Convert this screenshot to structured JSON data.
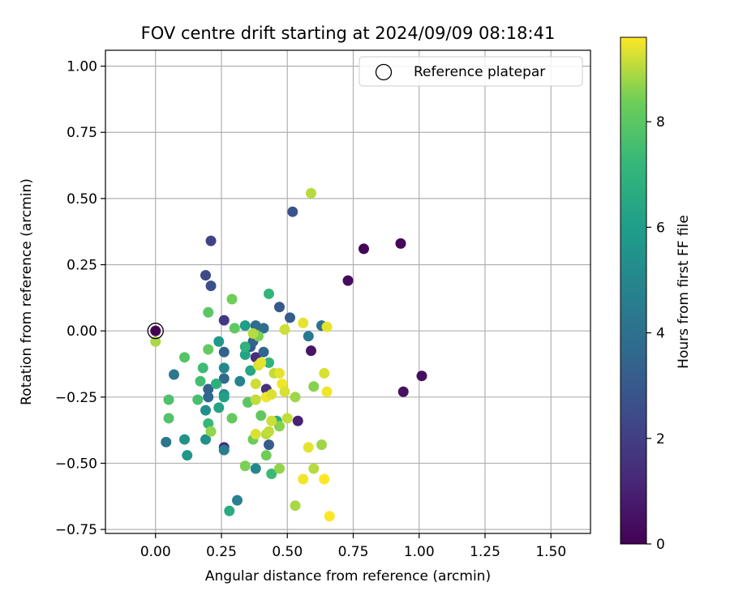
{
  "chart_data": {
    "type": "scatter",
    "title": "FOV centre drift starting at 2024/09/09 08:18:41",
    "xlabel": "Angular distance from reference (arcmin)",
    "ylabel": "Rotation from reference (arcmin)",
    "xlim": [
      -0.19,
      1.65
    ],
    "ylim": [
      -0.765,
      1.06
    ],
    "xticks": [
      0.0,
      0.25,
      0.5,
      0.75,
      1.0,
      1.25,
      1.5
    ],
    "xtick_labels": [
      "0.00",
      "0.25",
      "0.50",
      "0.75",
      "1.00",
      "1.25",
      "1.50"
    ],
    "yticks": [
      -0.75,
      -0.5,
      -0.25,
      0.0,
      0.25,
      0.5,
      0.75,
      1.0
    ],
    "ytick_labels": [
      "−0.75",
      "−0.50",
      "−0.25",
      "0.00",
      "0.25",
      "0.50",
      "0.75",
      "1.00"
    ],
    "grid": true,
    "legend_position": "top-right",
    "legend": [
      {
        "label": "Reference platepar",
        "marker": "open-circle"
      }
    ],
    "reference_point": {
      "x": 0.0,
      "y": 0.0
    },
    "colorbar": {
      "label": "Hours from first FF file",
      "colormap": "viridis",
      "range": [
        0,
        9.6
      ],
      "ticks": [
        0,
        2,
        4,
        6,
        8
      ],
      "tick_labels": [
        "0",
        "2",
        "4",
        "6",
        "8"
      ]
    },
    "points": [
      {
        "x": 0.0,
        "y": 0.0,
        "c": 0.0
      },
      {
        "x": 0.79,
        "y": 0.31,
        "c": 0.1
      },
      {
        "x": 0.93,
        "y": 0.33,
        "c": 0.2
      },
      {
        "x": 0.73,
        "y": 0.19,
        "c": 0.3
      },
      {
        "x": 1.01,
        "y": -0.17,
        "c": 0.4
      },
      {
        "x": 0.94,
        "y": -0.23,
        "c": 0.5
      },
      {
        "x": 0.59,
        "y": -0.075,
        "c": 0.6
      },
      {
        "x": 0.54,
        "y": -0.34,
        "c": 1.0
      },
      {
        "x": 0.26,
        "y": -0.44,
        "c": 1.2
      },
      {
        "x": 0.38,
        "y": -0.1,
        "c": 1.4
      },
      {
        "x": 0.42,
        "y": -0.22,
        "c": 1.6
      },
      {
        "x": 0.26,
        "y": 0.04,
        "c": 1.8
      },
      {
        "x": 0.21,
        "y": 0.34,
        "c": 2.2
      },
      {
        "x": 0.19,
        "y": 0.21,
        "c": 2.4
      },
      {
        "x": 0.21,
        "y": 0.17,
        "c": 2.6
      },
      {
        "x": 0.52,
        "y": 0.45,
        "c": 2.8
      },
      {
        "x": 0.47,
        "y": 0.09,
        "c": 3.0
      },
      {
        "x": 0.51,
        "y": 0.05,
        "c": 3.1
      },
      {
        "x": 0.36,
        "y": -0.06,
        "c": 3.0
      },
      {
        "x": 0.43,
        "y": -0.43,
        "c": 3.2
      },
      {
        "x": 0.2,
        "y": -0.22,
        "c": 3.3
      },
      {
        "x": 0.26,
        "y": -0.08,
        "c": 3.4
      },
      {
        "x": 0.37,
        "y": -0.04,
        "c": 3.3
      },
      {
        "x": 0.41,
        "y": -0.08,
        "c": 3.5
      },
      {
        "x": 0.2,
        "y": -0.25,
        "c": 3.6
      },
      {
        "x": 0.26,
        "y": -0.18,
        "c": 3.7
      },
      {
        "x": 0.38,
        "y": 0.02,
        "c": 3.8
      },
      {
        "x": 0.41,
        "y": 0.01,
        "c": 3.9
      },
      {
        "x": 0.63,
        "y": 0.02,
        "c": 4.0
      },
      {
        "x": 0.04,
        "y": -0.42,
        "c": 4.2
      },
      {
        "x": 0.07,
        "y": -0.165,
        "c": 4.3
      },
      {
        "x": 0.58,
        "y": -0.02,
        "c": 4.4
      },
      {
        "x": 0.26,
        "y": -0.45,
        "c": 4.6
      },
      {
        "x": 0.31,
        "y": -0.64,
        "c": 4.8
      },
      {
        "x": 0.32,
        "y": -0.19,
        "c": 4.9
      },
      {
        "x": 0.38,
        "y": -0.52,
        "c": 5.0
      },
      {
        "x": 0.26,
        "y": -0.14,
        "c": 5.1
      },
      {
        "x": 0.26,
        "y": -0.24,
        "c": 5.2
      },
      {
        "x": 0.19,
        "y": -0.3,
        "c": 5.3
      },
      {
        "x": 0.19,
        "y": -0.41,
        "c": 5.4
      },
      {
        "x": 0.11,
        "y": -0.41,
        "c": 5.5
      },
      {
        "x": 0.12,
        "y": -0.47,
        "c": 5.7
      },
      {
        "x": 0.24,
        "y": -0.04,
        "c": 5.8
      },
      {
        "x": 0.34,
        "y": 0.02,
        "c": 6.0
      },
      {
        "x": 0.26,
        "y": -0.25,
        "c": 6.1
      },
      {
        "x": 0.24,
        "y": -0.29,
        "c": 6.2
      },
      {
        "x": 0.34,
        "y": -0.09,
        "c": 6.3
      },
      {
        "x": 0.36,
        "y": -0.15,
        "c": 6.4
      },
      {
        "x": 0.28,
        "y": -0.68,
        "c": 6.6
      },
      {
        "x": 0.46,
        "y": -0.34,
        "c": 6.7
      },
      {
        "x": 0.23,
        "y": -0.2,
        "c": 6.8
      },
      {
        "x": 0.34,
        "y": -0.06,
        "c": 6.9
      },
      {
        "x": 0.43,
        "y": -0.12,
        "c": 7.0
      },
      {
        "x": 0.43,
        "y": 0.14,
        "c": 7.1
      },
      {
        "x": 0.2,
        "y": -0.35,
        "c": 7.2
      },
      {
        "x": 0.44,
        "y": -0.54,
        "c": 7.3
      },
      {
        "x": 0.18,
        "y": -0.14,
        "c": 7.4
      },
      {
        "x": 0.17,
        "y": -0.19,
        "c": 7.5
      },
      {
        "x": 0.16,
        "y": -0.26,
        "c": 7.6
      },
      {
        "x": 0.05,
        "y": -0.26,
        "c": 7.7
      },
      {
        "x": 0.05,
        "y": -0.33,
        "c": 7.8
      },
      {
        "x": 0.11,
        "y": -0.1,
        "c": 7.9
      },
      {
        "x": 0.2,
        "y": 0.07,
        "c": 8.0
      },
      {
        "x": 0.3,
        "y": 0.01,
        "c": 8.1
      },
      {
        "x": 0.29,
        "y": -0.33,
        "c": 8.2
      },
      {
        "x": 0.35,
        "y": -0.27,
        "c": 8.0
      },
      {
        "x": 0.4,
        "y": -0.32,
        "c": 8.1
      },
      {
        "x": 0.37,
        "y": -0.41,
        "c": 8.3
      },
      {
        "x": 0.42,
        "y": -0.47,
        "c": 8.4
      },
      {
        "x": 0.34,
        "y": -0.51,
        "c": 8.5
      },
      {
        "x": 0.47,
        "y": -0.36,
        "c": 8.6
      },
      {
        "x": 0.47,
        "y": -0.52,
        "c": 8.7
      },
      {
        "x": 0.53,
        "y": -0.25,
        "c": 8.8
      },
      {
        "x": 0.53,
        "y": -0.66,
        "c": 8.9
      },
      {
        "x": 0.6,
        "y": -0.52,
        "c": 9.0
      },
      {
        "x": 0.6,
        "y": -0.21,
        "c": 8.6
      },
      {
        "x": 0.63,
        "y": -0.43,
        "c": 8.8
      },
      {
        "x": 0.29,
        "y": 0.12,
        "c": 8.4
      },
      {
        "x": 0.2,
        "y": -0.07,
        "c": 8.2
      },
      {
        "x": 0.21,
        "y": -0.38,
        "c": 8.7
      },
      {
        "x": 0.0,
        "y": -0.04,
        "c": 8.9
      },
      {
        "x": 0.39,
        "y": -0.02,
        "c": 8.5
      },
      {
        "x": 0.37,
        "y": -0.01,
        "c": 9.0
      },
      {
        "x": 0.38,
        "y": -0.26,
        "c": 9.1
      },
      {
        "x": 0.38,
        "y": -0.2,
        "c": 9.2
      },
      {
        "x": 0.39,
        "y": -0.13,
        "c": 9.3
      },
      {
        "x": 0.4,
        "y": -0.12,
        "c": 9.4
      },
      {
        "x": 0.42,
        "y": -0.25,
        "c": 9.5
      },
      {
        "x": 0.44,
        "y": -0.24,
        "c": 9.3
      },
      {
        "x": 0.44,
        "y": -0.34,
        "c": 9.2
      },
      {
        "x": 0.45,
        "y": -0.16,
        "c": 9.1
      },
      {
        "x": 0.47,
        "y": -0.16,
        "c": 9.4
      },
      {
        "x": 0.48,
        "y": -0.2,
        "c": 9.5
      },
      {
        "x": 0.49,
        "y": -0.23,
        "c": 9.3
      },
      {
        "x": 0.49,
        "y": 0.005,
        "c": 9.2
      },
      {
        "x": 0.5,
        "y": -0.33,
        "c": 9.1
      },
      {
        "x": 0.42,
        "y": -0.39,
        "c": 9.0
      },
      {
        "x": 0.43,
        "y": -0.38,
        "c": 9.1
      },
      {
        "x": 0.38,
        "y": -0.39,
        "c": 9.3
      },
      {
        "x": 0.56,
        "y": 0.03,
        "c": 9.4
      },
      {
        "x": 0.56,
        "y": -0.56,
        "c": 9.5
      },
      {
        "x": 0.58,
        "y": -0.44,
        "c": 9.4
      },
      {
        "x": 0.59,
        "y": 0.52,
        "c": 9.0
      },
      {
        "x": 0.64,
        "y": -0.16,
        "c": 9.3
      },
      {
        "x": 0.64,
        "y": -0.56,
        "c": 9.6
      },
      {
        "x": 0.65,
        "y": 0.015,
        "c": 9.4
      },
      {
        "x": 0.65,
        "y": -0.23,
        "c": 9.5
      },
      {
        "x": 0.66,
        "y": -0.7,
        "c": 9.6
      }
    ]
  }
}
